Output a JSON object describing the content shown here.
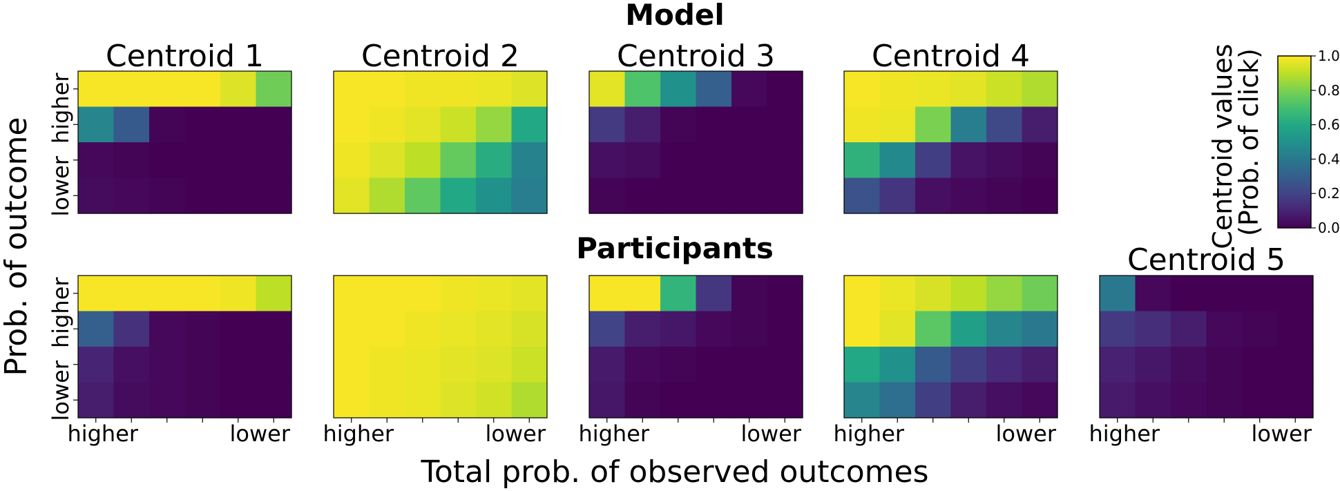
{
  "figure": {
    "row_titles": [
      "Model",
      "Participants"
    ],
    "ylabel": "Prob. of outcome",
    "xlabel": "Total prob. of observed outcomes",
    "row_ytick_labels": [
      "higher",
      "lower"
    ],
    "col_xtick_labels": [
      "higher",
      "lower"
    ],
    "colorbar": {
      "label_lines": [
        "Centroid values",
        "(Prob. of click)"
      ],
      "ticks": [
        "0.0",
        "0.2",
        "0.4",
        "0.6",
        "0.8",
        "1.0"
      ],
      "colormap": "viridis",
      "range": [
        0,
        1
      ]
    }
  },
  "chart_data": [
    {
      "type": "heatmap",
      "row": "Model",
      "title": "Centroid 1",
      "values": [
        [
          0.99,
          0.99,
          0.99,
          0.99,
          0.95,
          0.78
        ],
        [
          0.45,
          0.28,
          0.01,
          0.0,
          0.0,
          0.0
        ],
        [
          0.02,
          0.01,
          0.0,
          0.0,
          0.0,
          0.0
        ],
        [
          0.03,
          0.02,
          0.01,
          0.0,
          0.0,
          0.0
        ]
      ]
    },
    {
      "type": "heatmap",
      "row": "Model",
      "title": "Centroid 2",
      "values": [
        [
          0.99,
          0.99,
          0.98,
          0.98,
          0.97,
          0.95
        ],
        [
          0.99,
          0.98,
          0.96,
          0.92,
          0.84,
          0.6
        ],
        [
          0.98,
          0.95,
          0.9,
          0.76,
          0.62,
          0.44
        ],
        [
          0.96,
          0.88,
          0.75,
          0.6,
          0.5,
          0.42
        ]
      ]
    },
    {
      "type": "heatmap",
      "row": "Model",
      "title": "Centroid 3",
      "values": [
        [
          0.96,
          0.72,
          0.5,
          0.3,
          0.02,
          0.0
        ],
        [
          0.17,
          0.08,
          0.01,
          0.0,
          0.0,
          0.0
        ],
        [
          0.04,
          0.03,
          0.0,
          0.0,
          0.0,
          0.0
        ],
        [
          0.01,
          0.0,
          0.0,
          0.0,
          0.0,
          0.0
        ]
      ]
    },
    {
      "type": "heatmap",
      "row": "Model",
      "title": "Centroid 4",
      "values": [
        [
          0.99,
          0.98,
          0.97,
          0.96,
          0.92,
          0.88
        ],
        [
          0.98,
          0.97,
          0.8,
          0.42,
          0.22,
          0.08
        ],
        [
          0.64,
          0.47,
          0.18,
          0.05,
          0.03,
          0.01
        ],
        [
          0.25,
          0.15,
          0.04,
          0.02,
          0.01,
          0.0
        ]
      ]
    },
    {
      "type": "heatmap",
      "row": "Participants",
      "title": "",
      "values": [
        [
          0.99,
          0.99,
          0.99,
          0.99,
          0.98,
          0.9
        ],
        [
          0.3,
          0.14,
          0.02,
          0.01,
          0.0,
          0.0
        ],
        [
          0.1,
          0.04,
          0.02,
          0.01,
          0.0,
          0.0
        ],
        [
          0.08,
          0.03,
          0.02,
          0.01,
          0.0,
          0.0
        ]
      ]
    },
    {
      "type": "heatmap",
      "row": "Participants",
      "title": "",
      "values": [
        [
          0.99,
          0.99,
          0.99,
          0.98,
          0.97,
          0.96
        ],
        [
          0.99,
          0.99,
          0.98,
          0.97,
          0.96,
          0.94
        ],
        [
          0.99,
          0.98,
          0.97,
          0.96,
          0.95,
          0.92
        ],
        [
          0.99,
          0.98,
          0.97,
          0.95,
          0.93,
          0.88
        ]
      ]
    },
    {
      "type": "heatmap",
      "row": "Participants",
      "title": "",
      "values": [
        [
          0.99,
          0.99,
          0.65,
          0.16,
          0.01,
          0.0
        ],
        [
          0.2,
          0.08,
          0.06,
          0.02,
          0.01,
          0.0
        ],
        [
          0.07,
          0.02,
          0.01,
          0.0,
          0.0,
          0.0
        ],
        [
          0.06,
          0.01,
          0.0,
          0.0,
          0.0,
          0.0
        ]
      ]
    },
    {
      "type": "heatmap",
      "row": "Participants",
      "title": "",
      "values": [
        [
          0.99,
          0.97,
          0.94,
          0.9,
          0.84,
          0.78
        ],
        [
          0.99,
          0.96,
          0.74,
          0.56,
          0.45,
          0.4
        ],
        [
          0.6,
          0.5,
          0.28,
          0.18,
          0.12,
          0.08
        ],
        [
          0.45,
          0.36,
          0.18,
          0.08,
          0.04,
          0.02
        ]
      ]
    },
    {
      "type": "heatmap",
      "row": "Participants",
      "title": "Centroid 5",
      "values": [
        [
          0.4,
          0.02,
          0.0,
          0.0,
          0.0,
          0.0
        ],
        [
          0.17,
          0.13,
          0.08,
          0.02,
          0.01,
          0.0
        ],
        [
          0.09,
          0.06,
          0.03,
          0.01,
          0.0,
          0.0
        ],
        [
          0.07,
          0.04,
          0.02,
          0.01,
          0.0,
          0.0
        ]
      ]
    }
  ]
}
